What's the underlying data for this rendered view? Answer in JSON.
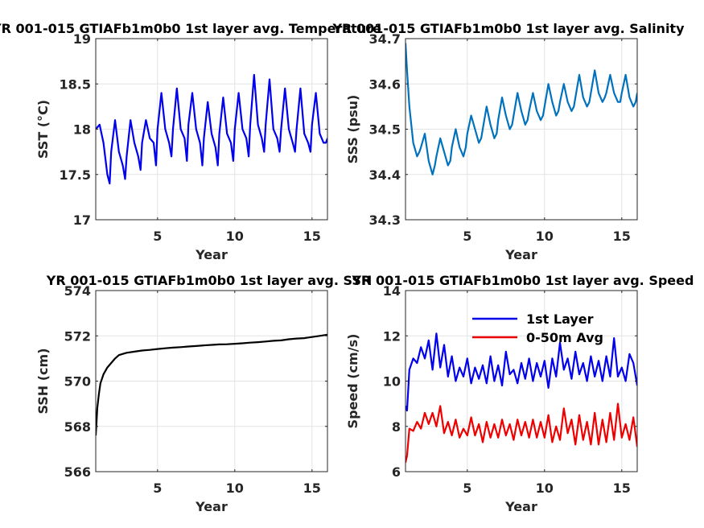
{
  "chart_data": [
    {
      "type": "line",
      "title": "YR 001-015 GTIAFb1m0b0 1st layer avg. Temperature",
      "xlabel": "Year",
      "ylabel": "SST (°C)",
      "xlim": [
        1,
        16
      ],
      "ylim": [
        17,
        19
      ],
      "xticks": [
        5,
        10,
        15
      ],
      "yticks": [
        17,
        17.5,
        18,
        18.5,
        19
      ],
      "ytick_labels": [
        "17",
        "17.5",
        "18",
        "18.5",
        "19"
      ],
      "grid": true,
      "series": [
        {
          "color": "#0000ee",
          "x": [
            1.0,
            1.25,
            1.5,
            1.75,
            1.9,
            2.0,
            2.25,
            2.5,
            2.75,
            2.9,
            3.0,
            3.25,
            3.5,
            3.75,
            3.9,
            4.0,
            4.25,
            4.5,
            4.75,
            4.9,
            5.0,
            5.25,
            5.5,
            5.75,
            5.9,
            6.0,
            6.25,
            6.5,
            6.75,
            6.9,
            7.0,
            7.25,
            7.5,
            7.75,
            7.9,
            8.0,
            8.25,
            8.5,
            8.75,
            8.9,
            9.0,
            9.25,
            9.5,
            9.75,
            9.9,
            10.0,
            10.25,
            10.5,
            10.75,
            10.9,
            11.0,
            11.25,
            11.5,
            11.75,
            11.9,
            12.0,
            12.25,
            12.5,
            12.75,
            12.9,
            13.0,
            13.25,
            13.5,
            13.75,
            13.9,
            14.0,
            14.25,
            14.5,
            14.75,
            14.9,
            15.0,
            15.25,
            15.5,
            15.75,
            15.9,
            16.0
          ],
          "y": [
            18.0,
            18.05,
            17.85,
            17.5,
            17.4,
            17.75,
            18.1,
            17.75,
            17.6,
            17.45,
            17.7,
            18.1,
            17.85,
            17.7,
            17.55,
            17.85,
            18.1,
            17.9,
            17.85,
            17.6,
            18.0,
            18.4,
            18.0,
            17.85,
            17.7,
            18.0,
            18.45,
            18.0,
            17.9,
            17.65,
            18.05,
            18.4,
            18.0,
            17.85,
            17.6,
            17.9,
            18.3,
            17.95,
            17.8,
            17.6,
            17.95,
            18.35,
            17.95,
            17.85,
            17.65,
            18.0,
            18.4,
            18.0,
            17.9,
            17.7,
            18.05,
            18.6,
            18.05,
            17.9,
            17.75,
            18.05,
            18.55,
            18.0,
            17.9,
            17.75,
            18.0,
            18.45,
            18.0,
            17.85,
            17.75,
            18.0,
            18.45,
            17.95,
            17.85,
            17.75,
            18.05,
            18.4,
            17.95,
            17.85,
            17.85,
            17.9
          ]
        }
      ]
    },
    {
      "type": "line",
      "title": "YR 001-015 GTIAFb1m0b0 1st layer avg. Salinity",
      "xlabel": "Year",
      "ylabel": "SSS (psu)",
      "xlim": [
        1,
        16
      ],
      "ylim": [
        34.3,
        34.7
      ],
      "xticks": [
        5,
        10,
        15
      ],
      "yticks": [
        34.3,
        34.4,
        34.5,
        34.6,
        34.7
      ],
      "ytick_labels": [
        "34.3",
        "34.4",
        "34.5",
        "34.6",
        "34.7"
      ],
      "grid": true,
      "series": [
        {
          "color": "#0072bd",
          "x": [
            1.0,
            1.1,
            1.25,
            1.5,
            1.75,
            1.9,
            2.0,
            2.25,
            2.5,
            2.75,
            2.9,
            3.0,
            3.25,
            3.5,
            3.75,
            3.9,
            4.0,
            4.25,
            4.5,
            4.75,
            4.9,
            5.0,
            5.25,
            5.5,
            5.75,
            5.9,
            6.0,
            6.25,
            6.5,
            6.75,
            6.9,
            7.0,
            7.25,
            7.5,
            7.75,
            7.9,
            8.0,
            8.25,
            8.5,
            8.75,
            8.9,
            9.0,
            9.25,
            9.5,
            9.75,
            9.9,
            10.0,
            10.25,
            10.5,
            10.75,
            10.9,
            11.0,
            11.25,
            11.5,
            11.75,
            11.9,
            12.0,
            12.25,
            12.5,
            12.75,
            12.9,
            13.0,
            13.25,
            13.5,
            13.75,
            13.9,
            14.0,
            14.25,
            14.5,
            14.75,
            14.9,
            15.0,
            15.25,
            15.5,
            15.75,
            15.9,
            16.0
          ],
          "y": [
            34.69,
            34.63,
            34.55,
            34.47,
            34.44,
            34.45,
            34.46,
            34.49,
            34.43,
            34.4,
            34.42,
            34.44,
            34.48,
            34.45,
            34.42,
            34.43,
            34.46,
            34.5,
            34.46,
            34.44,
            34.46,
            34.49,
            34.53,
            34.5,
            34.47,
            34.48,
            34.5,
            34.55,
            34.51,
            34.48,
            34.49,
            34.52,
            34.57,
            34.53,
            34.5,
            34.51,
            34.53,
            34.58,
            34.54,
            34.51,
            34.52,
            34.54,
            34.58,
            34.54,
            34.52,
            34.53,
            34.55,
            34.6,
            34.56,
            34.53,
            34.54,
            34.56,
            34.6,
            34.56,
            34.54,
            34.55,
            34.57,
            34.62,
            34.57,
            34.55,
            34.56,
            34.58,
            34.63,
            34.58,
            34.56,
            34.57,
            34.58,
            34.62,
            34.58,
            34.56,
            34.56,
            34.58,
            34.62,
            34.57,
            34.55,
            34.56,
            34.58
          ]
        }
      ]
    },
    {
      "type": "line",
      "title": "YR 001-015 GTIAFb1m0b0 1st layer avg. SSH",
      "xlabel": "Year",
      "ylabel": "SSH (cm)",
      "xlim": [
        1,
        16
      ],
      "ylim": [
        566,
        574
      ],
      "xticks": [
        5,
        10,
        15
      ],
      "yticks": [
        566,
        568,
        570,
        572,
        574
      ],
      "ytick_labels": [
        "566",
        "568",
        "570",
        "572",
        "574"
      ],
      "grid": true,
      "series": [
        {
          "color": "#000000",
          "x": [
            1.0,
            1.05,
            1.1,
            1.2,
            1.3,
            1.5,
            1.75,
            2.0,
            2.25,
            2.5,
            2.75,
            3.0,
            3.5,
            4.0,
            4.5,
            5.0,
            5.5,
            6.0,
            6.5,
            7.0,
            7.5,
            8.0,
            8.5,
            9.0,
            9.5,
            10.0,
            10.5,
            11.0,
            11.5,
            12.0,
            12.5,
            13.0,
            13.5,
            14.0,
            14.5,
            15.0,
            15.5,
            16.0
          ],
          "y": [
            567.6,
            568.2,
            568.8,
            569.4,
            569.9,
            570.3,
            570.6,
            570.8,
            571.0,
            571.15,
            571.2,
            571.25,
            571.3,
            571.35,
            571.38,
            571.42,
            571.45,
            571.48,
            571.5,
            571.53,
            571.55,
            571.58,
            571.6,
            571.62,
            571.63,
            571.65,
            571.67,
            571.7,
            571.72,
            571.75,
            571.78,
            571.8,
            571.85,
            571.88,
            571.9,
            571.95,
            572.0,
            572.05
          ]
        }
      ]
    },
    {
      "type": "line",
      "title": "YR 001-015 GTIAFb1m0b0 1st layer avg. Speed",
      "xlabel": "Year",
      "ylabel": "Speed (cm/s)",
      "xlim": [
        1,
        16
      ],
      "ylim": [
        6,
        14
      ],
      "xticks": [
        5,
        10,
        15
      ],
      "yticks": [
        6,
        8,
        10,
        12,
        14
      ],
      "ytick_labels": [
        "6",
        "8",
        "10",
        "12",
        "14"
      ],
      "grid": true,
      "legend_position": "top-right",
      "series": [
        {
          "name": "1st Layer",
          "color": "#0000ee",
          "x": [
            1.0,
            1.1,
            1.25,
            1.5,
            1.75,
            2.0,
            2.25,
            2.5,
            2.75,
            3.0,
            3.25,
            3.5,
            3.75,
            4.0,
            4.25,
            4.5,
            4.75,
            5.0,
            5.25,
            5.5,
            5.75,
            6.0,
            6.25,
            6.5,
            6.75,
            7.0,
            7.25,
            7.5,
            7.75,
            8.0,
            8.25,
            8.5,
            8.75,
            9.0,
            9.25,
            9.5,
            9.75,
            10.0,
            10.25,
            10.5,
            10.75,
            11.0,
            11.25,
            11.5,
            11.75,
            12.0,
            12.25,
            12.5,
            12.75,
            13.0,
            13.25,
            13.5,
            13.75,
            14.0,
            14.25,
            14.5,
            14.75,
            15.0,
            15.25,
            15.5,
            15.75,
            16.0
          ],
          "y": [
            8.9,
            8.7,
            10.5,
            11.0,
            10.8,
            11.5,
            11.0,
            11.8,
            10.5,
            12.1,
            10.6,
            11.6,
            10.2,
            11.1,
            10.0,
            10.6,
            10.2,
            11.0,
            9.9,
            10.6,
            10.1,
            10.7,
            9.9,
            11.1,
            10.0,
            10.7,
            9.8,
            11.3,
            10.3,
            10.5,
            9.9,
            10.8,
            10.1,
            11.0,
            10.0,
            10.8,
            10.2,
            10.9,
            9.7,
            11.0,
            10.2,
            11.7,
            10.5,
            11.0,
            10.1,
            11.3,
            10.3,
            10.8,
            10.0,
            11.1,
            10.2,
            10.9,
            10.0,
            11.1,
            10.2,
            11.9,
            10.2,
            10.6,
            10.0,
            11.2,
            10.8,
            9.8
          ]
        },
        {
          "name": "0-50m Avg",
          "color": "#ee0000",
          "x": [
            1.0,
            1.1,
            1.25,
            1.5,
            1.75,
            2.0,
            2.25,
            2.5,
            2.75,
            3.0,
            3.25,
            3.5,
            3.75,
            4.0,
            4.25,
            4.5,
            4.75,
            5.0,
            5.25,
            5.5,
            5.75,
            6.0,
            6.25,
            6.5,
            6.75,
            7.0,
            7.25,
            7.5,
            7.75,
            8.0,
            8.25,
            8.5,
            8.75,
            9.0,
            9.25,
            9.5,
            9.75,
            10.0,
            10.25,
            10.5,
            10.75,
            11.0,
            11.25,
            11.5,
            11.75,
            12.0,
            12.25,
            12.5,
            12.75,
            13.0,
            13.25,
            13.5,
            13.75,
            14.0,
            14.25,
            14.5,
            14.75,
            15.0,
            15.25,
            15.5,
            15.75,
            16.0
          ],
          "y": [
            6.4,
            6.7,
            7.9,
            7.8,
            8.2,
            7.9,
            8.6,
            8.1,
            8.6,
            8.0,
            8.9,
            7.7,
            8.2,
            7.6,
            8.3,
            7.5,
            7.9,
            7.6,
            8.4,
            7.6,
            8.1,
            7.3,
            8.2,
            7.5,
            8.1,
            7.5,
            8.3,
            7.6,
            8.1,
            7.4,
            8.3,
            7.6,
            8.2,
            7.5,
            8.3,
            7.5,
            8.2,
            7.5,
            8.5,
            7.3,
            8.0,
            7.4,
            8.8,
            7.7,
            8.3,
            7.2,
            8.5,
            7.4,
            8.2,
            7.2,
            8.6,
            7.2,
            8.3,
            7.3,
            8.6,
            7.4,
            9.0,
            7.5,
            8.1,
            7.4,
            8.4,
            7.1
          ]
        }
      ]
    }
  ]
}
